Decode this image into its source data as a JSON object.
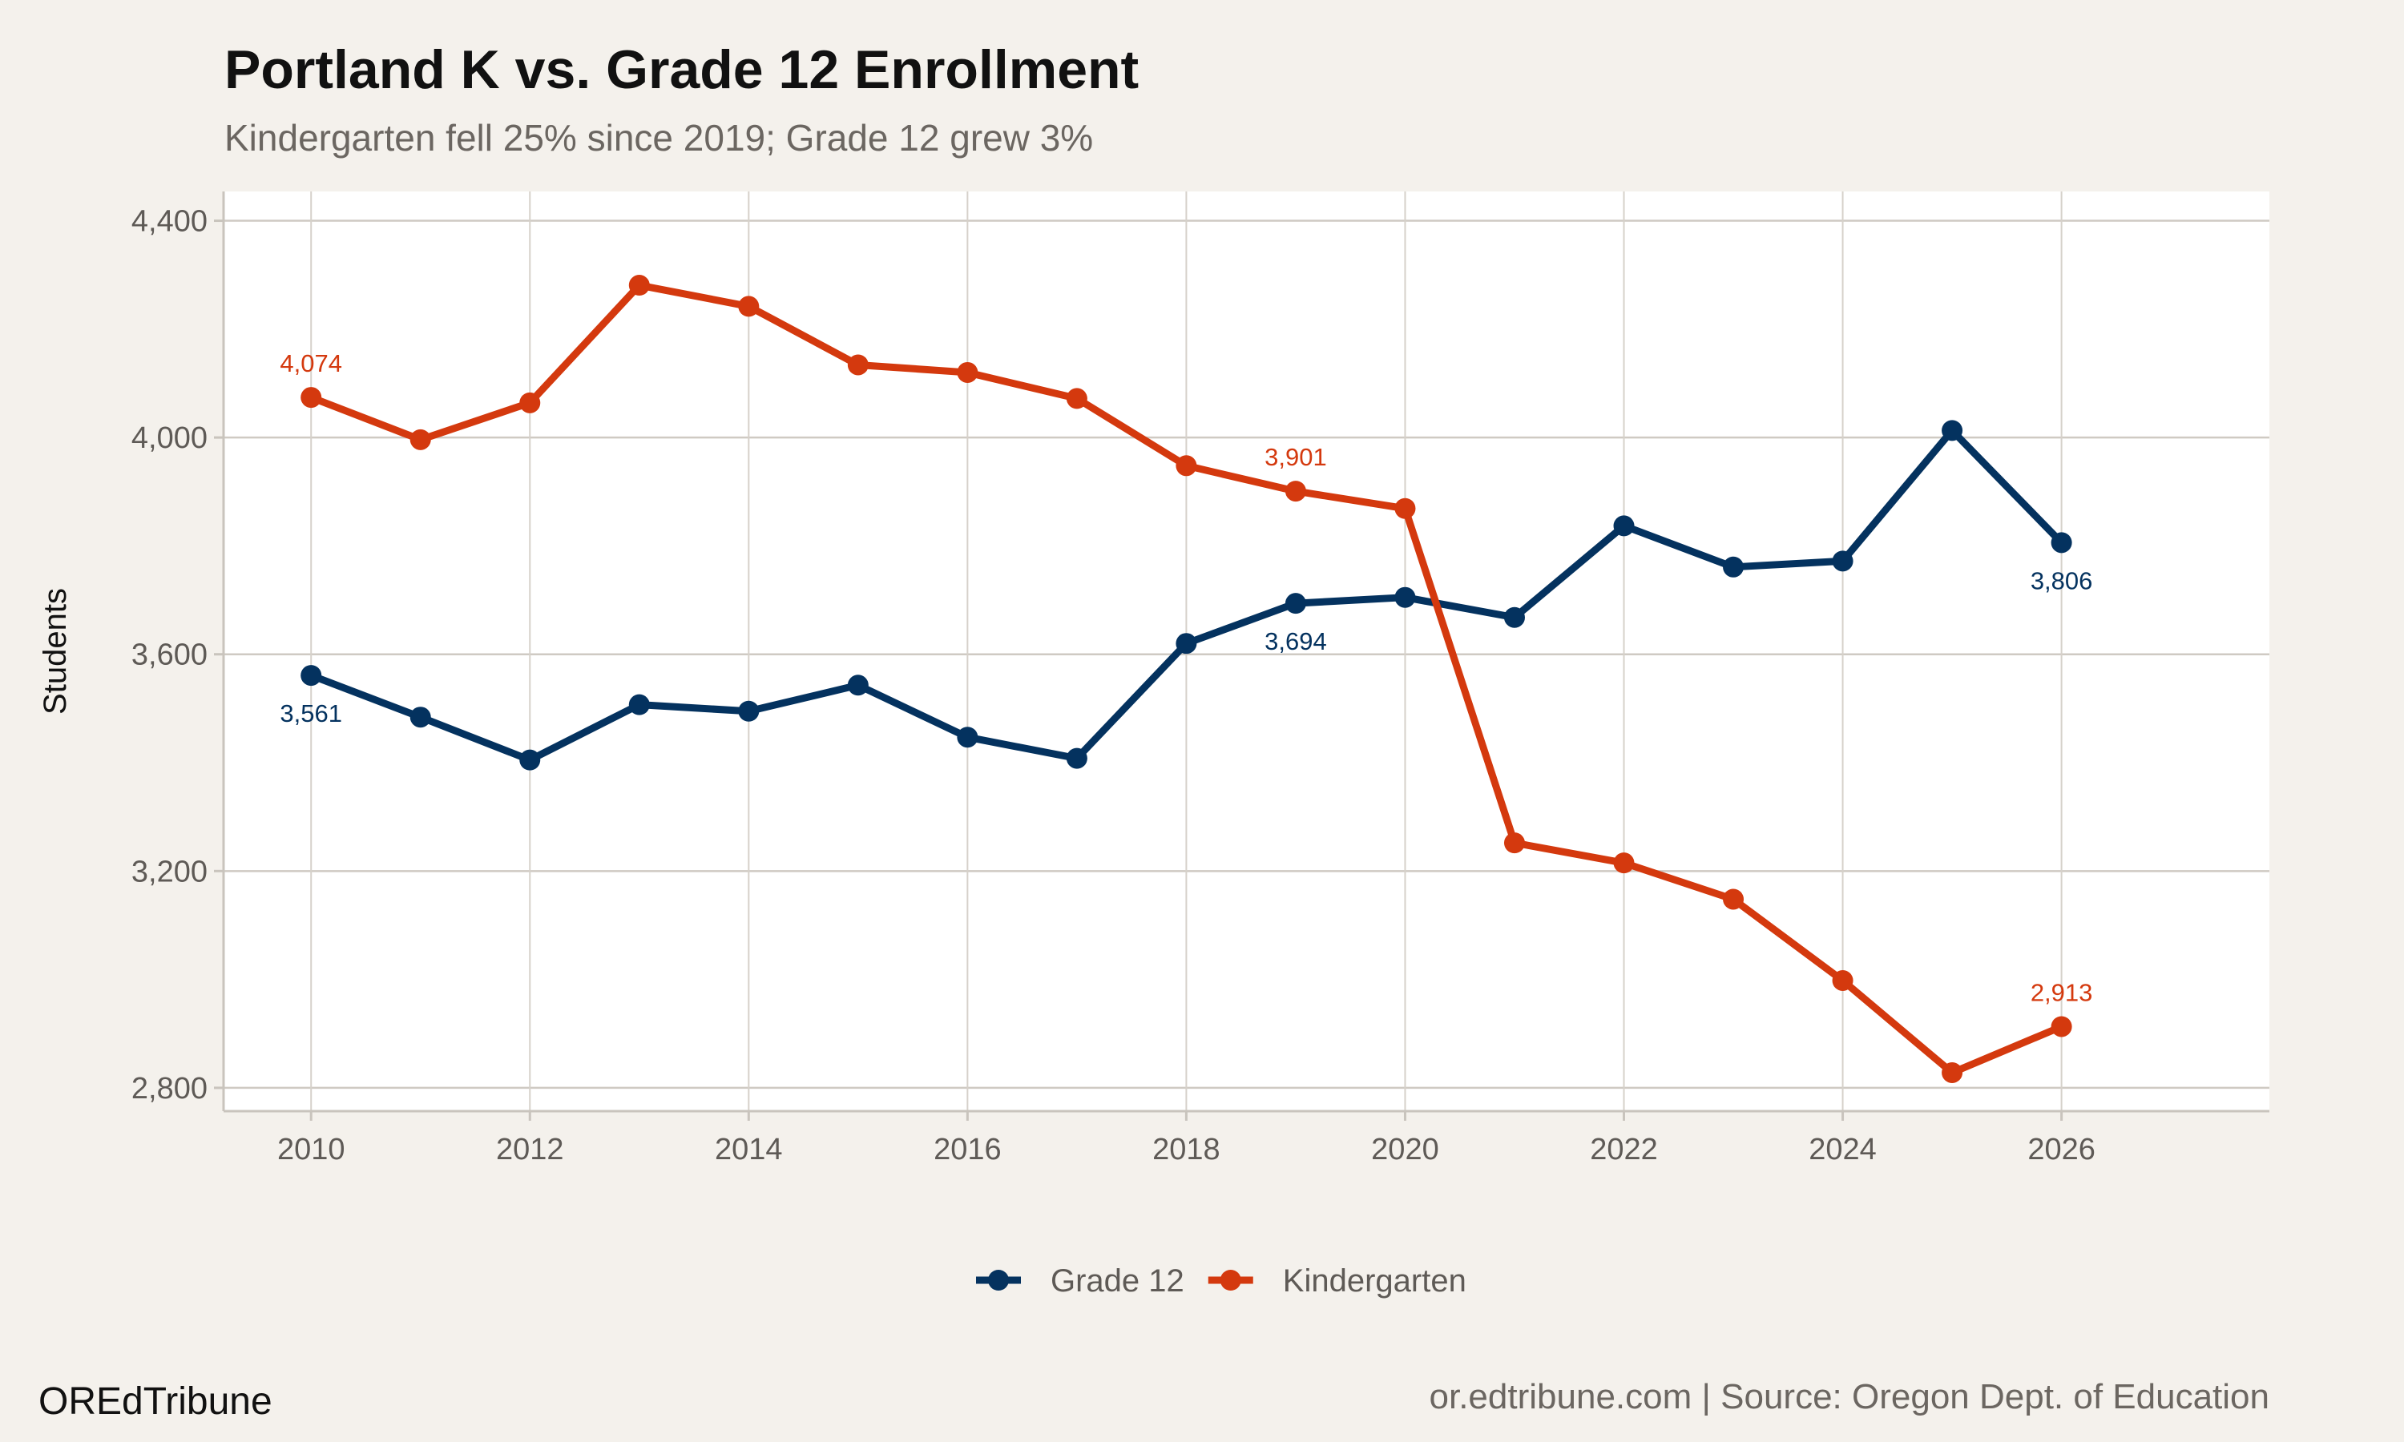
{
  "chart_data": {
    "type": "line",
    "title": "Portland K vs. Grade 12 Enrollment",
    "subtitle": "Kindergarten fell 25% since 2019; Grade 12 grew 3%",
    "xlabel": "",
    "ylabel": "Students",
    "x": [
      2010,
      2011,
      2012,
      2013,
      2014,
      2015,
      2016,
      2017,
      2018,
      2019,
      2020,
      2021,
      2022,
      2023,
      2024,
      2025,
      2026
    ],
    "xticks": [
      "2010",
      "2012",
      "2014",
      "2016",
      "2018",
      "2020",
      "2022",
      "2024",
      "2026"
    ],
    "xtick_values": [
      2010,
      2012,
      2014,
      2016,
      2018,
      2020,
      2022,
      2024,
      2026
    ],
    "yticks": [
      "2,800",
      "3,200",
      "3,600",
      "4,000",
      "4,400"
    ],
    "ytick_values": [
      2800,
      3200,
      3600,
      4000,
      4400
    ],
    "xlim": [
      2009.2,
      2027.9
    ],
    "ylim": [
      2757,
      4454
    ],
    "grid": true,
    "legend_position": "bottom",
    "series": [
      {
        "name": "Grade 12",
        "color": "#04325f",
        "values": [
          3561,
          3484,
          3405,
          3507,
          3495,
          3543,
          3447,
          3408,
          3620,
          3694,
          3705,
          3668,
          3837,
          3761,
          3772,
          4013,
          3806
        ],
        "labels": [
          {
            "x": 2010,
            "text": "3,561",
            "position": "below"
          },
          {
            "x": 2019,
            "text": "3,694",
            "position": "below"
          },
          {
            "x": 2026,
            "text": "3,806",
            "position": "below"
          }
        ]
      },
      {
        "name": "Kindergarten",
        "color": "#d4390e",
        "values": [
          4074,
          3996,
          4064,
          4281,
          4242,
          4134,
          4120,
          4072,
          3948,
          3901,
          3869,
          3252,
          3215,
          3148,
          2998,
          2828,
          2913
        ],
        "labels": [
          {
            "x": 2010,
            "text": "4,074",
            "position": "above"
          },
          {
            "x": 2019,
            "text": "3,901",
            "position": "above"
          },
          {
            "x": 2026,
            "text": "2,913",
            "position": "above"
          }
        ]
      }
    ]
  },
  "caption": {
    "left": "OREdTribune",
    "right": "or.edtribune.com | Source: Oregon Dept. of Education"
  }
}
